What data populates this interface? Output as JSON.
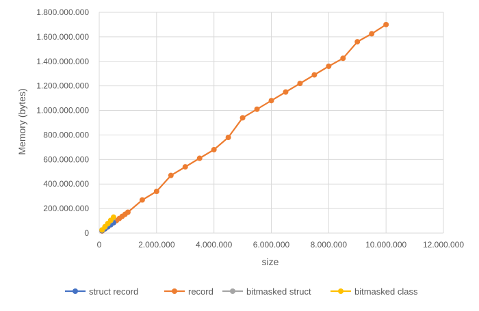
{
  "chart_data": {
    "type": "line",
    "title": "",
    "xlabel": "size",
    "ylabel": "Memory (bytes)",
    "xlim": [
      0,
      12000000
    ],
    "ylim": [
      0,
      1800000000
    ],
    "xticks": [
      0,
      2000000,
      4000000,
      6000000,
      8000000,
      10000000,
      12000000
    ],
    "xtick_labels": [
      "0",
      "2.000.000",
      "4.000.000",
      "6.000.000",
      "8.000.000",
      "10.000.000",
      "12.000.000"
    ],
    "yticks": [
      0,
      200000000,
      400000000,
      600000000,
      800000000,
      1000000000,
      1200000000,
      1400000000,
      1600000000,
      1800000000
    ],
    "ytick_labels": [
      "0",
      "200.000.000",
      "400.000.000",
      "600.000.000",
      "800.000.000",
      "1.000.000.000",
      "1.200.000.000",
      "1.400.000.000",
      "1.600.000.000",
      "1.800.000.000"
    ],
    "grid": "vertical and horizontal",
    "legend_position": "bottom",
    "series": [
      {
        "name": "struct record",
        "color": "#4472C4",
        "x": [
          100000,
          200000,
          300000,
          400000,
          500000
        ],
        "y": [
          20000000,
          35000000,
          52000000,
          68000000,
          85000000
        ]
      },
      {
        "name": "record",
        "color": "#ED7D31",
        "x": [
          100000,
          200000,
          300000,
          400000,
          500000,
          600000,
          700000,
          800000,
          900000,
          1000000,
          1500000,
          2000000,
          2500000,
          3000000,
          3500000,
          4000000,
          4500000,
          5000000,
          5500000,
          6000000,
          6500000,
          7000000,
          7500000,
          8000000,
          8500000,
          9000000,
          9500000,
          10000000
        ],
        "y": [
          17000000,
          34000000,
          51000000,
          68000000,
          85000000,
          102000000,
          119000000,
          136000000,
          153000000,
          170000000,
          270000000,
          340000000,
          470000000,
          540000000,
          610000000,
          680000000,
          780000000,
          940000000,
          1010000000,
          1080000000,
          1150000000,
          1220000000,
          1290000000,
          1360000000,
          1425000000,
          1560000000,
          1625000000,
          1700000000
        ]
      },
      {
        "name": "bitmasked struct",
        "color": "#A5A5A5",
        "x": [
          100000,
          200000,
          300000,
          400000,
          500000
        ],
        "y": [
          25000000,
          50000000,
          75000000,
          100000000,
          125000000
        ]
      },
      {
        "name": "bitmasked class",
        "color": "#FFC000",
        "x": [
          100000,
          200000,
          300000,
          400000,
          500000
        ],
        "y": [
          26000000,
          52000000,
          78000000,
          104000000,
          130000000
        ]
      }
    ]
  }
}
